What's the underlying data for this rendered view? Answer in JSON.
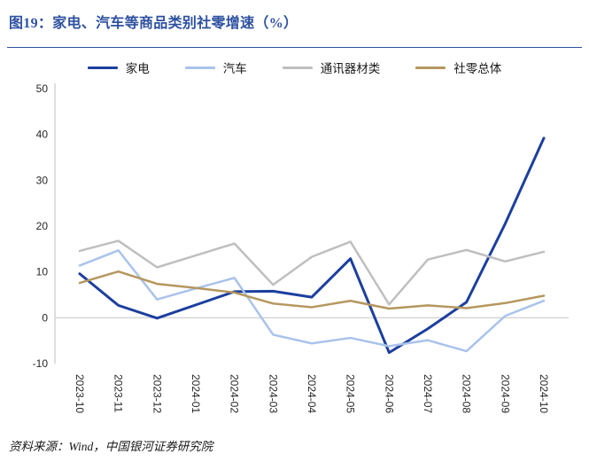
{
  "figure": {
    "title": "图19：家电、汽车等商品类别社零增速（%）",
    "source_note": "资料来源：Wind，中国银河证券研究院"
  },
  "colors": {
    "title": "#2E51A0",
    "divider": "#2E51A0",
    "axis_line": "#BFBFBF",
    "zero_line": "#D6D6D6",
    "tick_text": "#262626"
  },
  "chart_data": {
    "type": "line",
    "title": "家电、汽车等商品类别社零增速（%）",
    "x": [
      "2023-10",
      "2023-11",
      "2023-12",
      "2024-01",
      "2024-02",
      "2024-03",
      "2024-04",
      "2024-05",
      "2024-06",
      "2024-07",
      "2024-08",
      "2024-09",
      "2024-10"
    ],
    "series": [
      {
        "key": "home-appliances",
        "name": "家电",
        "color": "#1C3F9E",
        "width": 3,
        "values": [
          9.6,
          2.7,
          -0.1,
          2.8,
          5.7,
          5.8,
          4.5,
          12.9,
          -7.6,
          -2.4,
          3.4,
          20.5,
          39.2
        ]
      },
      {
        "key": "autos",
        "name": "汽车",
        "color": "#A9C3EB",
        "width": 2.5,
        "values": [
          11.4,
          14.7,
          4.0,
          6.4,
          8.7,
          -3.7,
          -5.6,
          -4.4,
          -6.2,
          -4.9,
          -7.3,
          0.4,
          3.7
        ]
      },
      {
        "key": "telecom-equipment",
        "name": "通讯器材类",
        "color": "#BFBFBF",
        "width": 2.5,
        "values": [
          14.6,
          16.8,
          11.0,
          13.6,
          16.2,
          7.2,
          13.3,
          16.6,
          2.9,
          12.7,
          14.8,
          12.3,
          14.4
        ]
      },
      {
        "key": "total-retail",
        "name": "社零总体",
        "color": "#B5975F",
        "width": 2.5,
        "values": [
          7.6,
          10.1,
          7.4,
          6.5,
          5.5,
          3.1,
          2.3,
          3.7,
          2.0,
          2.7,
          2.1,
          3.2,
          4.8
        ]
      }
    ],
    "ylim": [
      -10,
      50
    ],
    "ytick_step": 10,
    "xtick_rotation": 90,
    "legend_position": "top",
    "grid": "zero-line-only"
  }
}
